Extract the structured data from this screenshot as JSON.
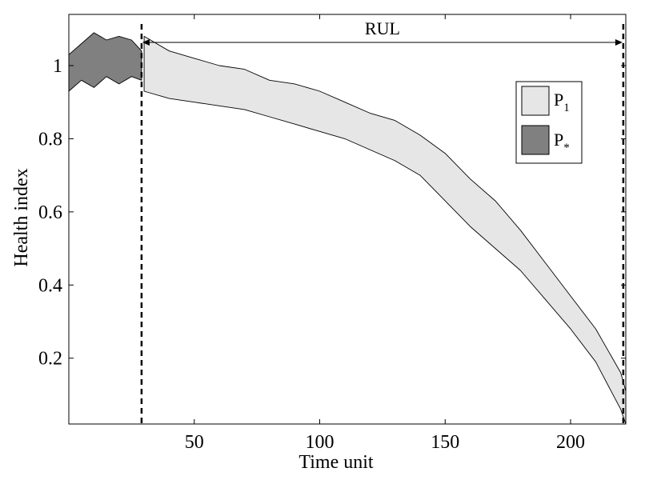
{
  "chart_data": {
    "type": "area",
    "xlabel": "Time unit",
    "ylabel": "Health index",
    "xlim": [
      0,
      222
    ],
    "ylim": [
      0.02,
      1.14
    ],
    "grid": false,
    "xticks": [
      50,
      100,
      150,
      200
    ],
    "yticks": [
      0.2,
      0.4,
      0.6,
      0.8,
      1
    ],
    "legend_position": "top-right",
    "series": [
      {
        "name": "P1",
        "color": "#e6e6e6",
        "x": [
          30,
          40,
          50,
          60,
          70,
          80,
          90,
          100,
          110,
          120,
          130,
          140,
          150,
          160,
          170,
          180,
          190,
          200,
          210,
          220,
          222
        ],
        "upper": [
          1.08,
          1.04,
          1.02,
          1.0,
          0.99,
          0.96,
          0.95,
          0.93,
          0.9,
          0.87,
          0.85,
          0.81,
          0.76,
          0.69,
          0.63,
          0.55,
          0.46,
          0.37,
          0.28,
          0.16,
          0.11
        ],
        "lower": [
          0.93,
          0.91,
          0.9,
          0.89,
          0.88,
          0.86,
          0.84,
          0.82,
          0.8,
          0.77,
          0.74,
          0.7,
          0.63,
          0.56,
          0.5,
          0.44,
          0.36,
          0.28,
          0.19,
          0.06,
          0.02
        ]
      },
      {
        "name": "P*",
        "color": "#808080",
        "x": [
          0,
          5,
          10,
          15,
          20,
          25,
          29
        ],
        "upper": [
          1.03,
          1.06,
          1.09,
          1.07,
          1.08,
          1.07,
          1.04
        ],
        "lower": [
          0.93,
          0.96,
          0.94,
          0.97,
          0.95,
          0.97,
          0.96
        ]
      }
    ],
    "annotations": {
      "rul_label": "RUL",
      "rul_start_x": 29,
      "rul_end_x": 221
    }
  },
  "legend": {
    "p1_main": "P",
    "p1_sub": "1",
    "pstar_main": "P",
    "pstar_sub": "*"
  }
}
